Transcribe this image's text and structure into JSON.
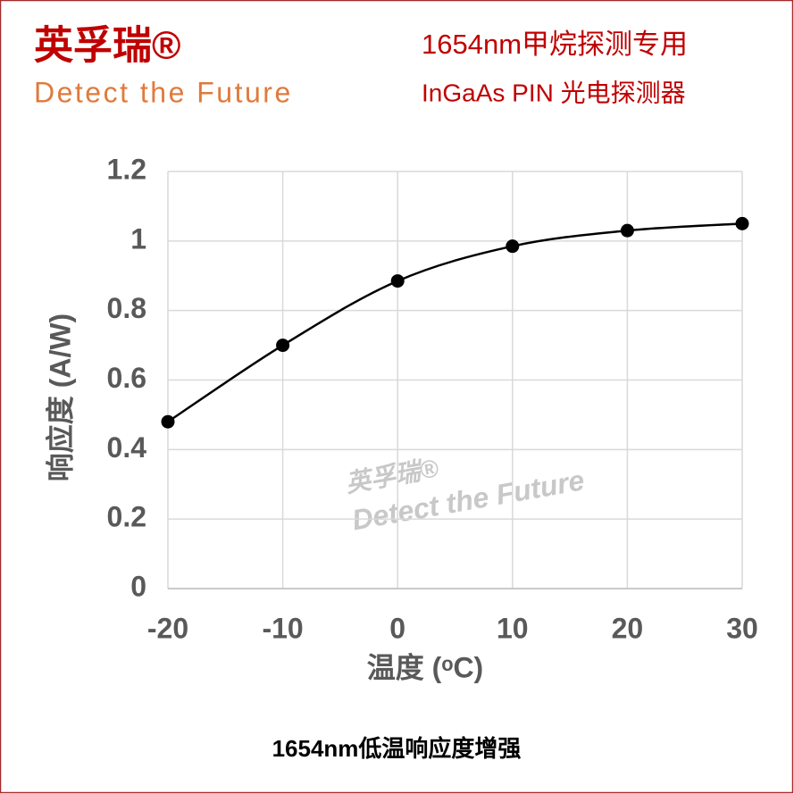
{
  "header": {
    "brand": "英孚瑞®",
    "slogan": "Detect the Future",
    "title": "1654nm甲烷探测专用",
    "subtitle": "InGaAs PIN 光电探测器"
  },
  "watermark": {
    "brand": "英孚瑞®",
    "slogan": "Detect the Future"
  },
  "caption": "1654nm低温响应度增强",
  "chart_data": {
    "type": "line",
    "x_label": "温度 (ᵒC)",
    "y_label": "响应度 (A/W)",
    "x": [
      -20,
      -10,
      0,
      10,
      20,
      30
    ],
    "series": [
      {
        "color": "#000000",
        "values": [
          0.48,
          0.7,
          0.885,
          0.985,
          1.03,
          1.05
        ]
      }
    ],
    "xlim": [
      -20,
      30
    ],
    "xticks": [
      -20,
      -10,
      0,
      10,
      20,
      30
    ],
    "ylim": [
      0,
      1.2
    ],
    "yticks": [
      0,
      0.2,
      0.4,
      0.6,
      0.8,
      1,
      1.2
    ],
    "grid": true
  }
}
